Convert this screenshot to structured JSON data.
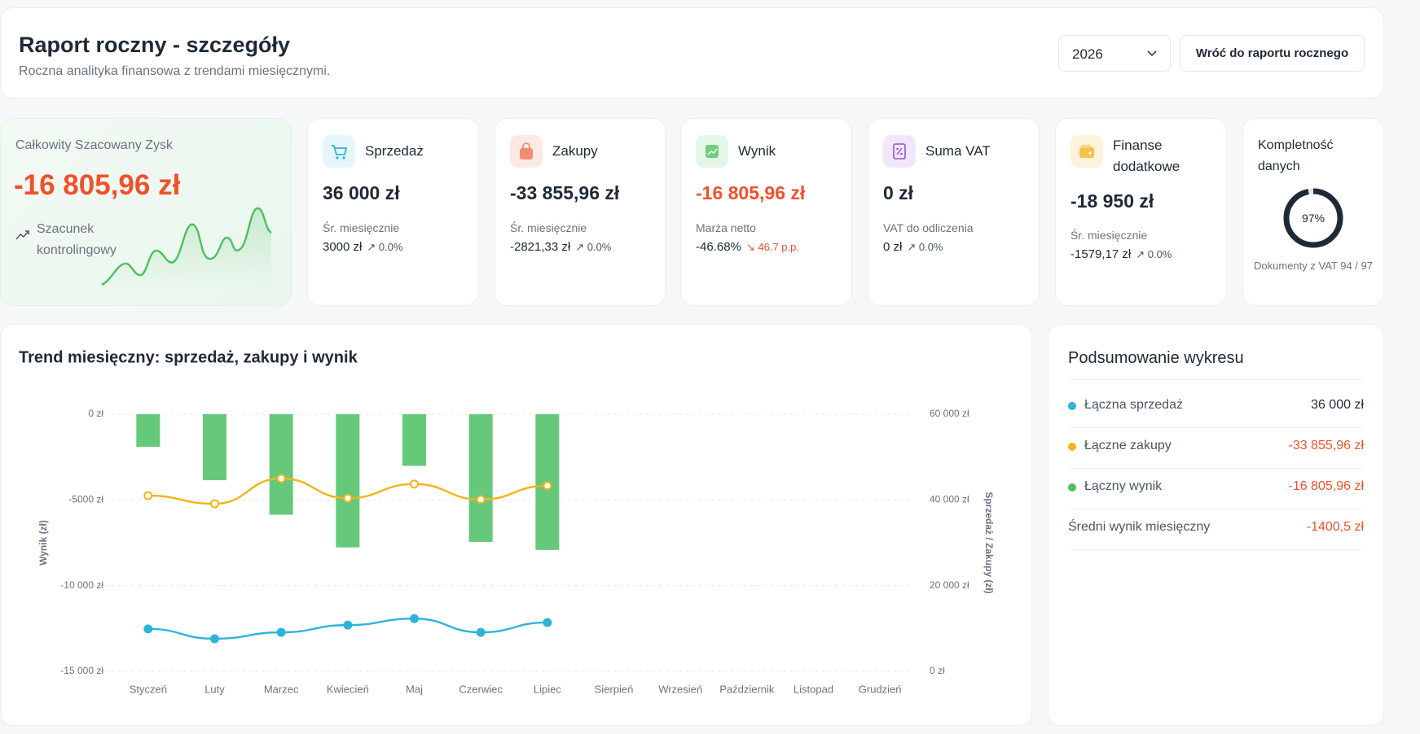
{
  "header": {
    "title": "Raport roczny - szczegóły",
    "subtitle": "Roczna analityka finansowa z trendami miesięcznymi.",
    "year": "2026",
    "back_button": "Wróć do raportu rocznego"
  },
  "hero": {
    "label": "Całkowity Szacowany Zysk",
    "value": "-16 805,96 zł",
    "note": "Szacunek kontrolingowy"
  },
  "kpis": [
    {
      "title": "Sprzedaż",
      "value": "36 000 zł",
      "sub_label": "Śr. miesięcznie",
      "sub_value": "3000 zł",
      "trend": "0.0%"
    },
    {
      "title": "Zakupy",
      "value": "-33 855,96 zł",
      "sub_label": "Śr. miesięcznie",
      "sub_value": "-2821,33 zł",
      "trend": "0.0%"
    },
    {
      "title": "Wynik",
      "value": "-16 805,96 zł",
      "sub_label": "Marża netto",
      "sub_value": "-46.68%",
      "trend": "46.7 p.p."
    },
    {
      "title": "Suma VAT",
      "value": "0 zł",
      "sub_label": "VAT do odliczenia",
      "sub_value": "0 zł",
      "trend": "0.0%"
    },
    {
      "title": "Finanse dodatkowe",
      "value": "-18 950 zł",
      "sub_label": "Śr. miesięcznie",
      "sub_value": "-1579,17 zł",
      "trend": "0.0%"
    },
    {
      "title": "Kompletność danych",
      "value": 97,
      "value_label": "97%",
      "note": "Dokumenty z VAT 94 / 97"
    }
  ],
  "chart_data": {
    "type": "bar",
    "title": "Trend miesięczny: sprzedaż, zakupy i wynik",
    "categories": [
      "Styczeń",
      "Luty",
      "Marzec",
      "Kwiecień",
      "Maj",
      "Czerwiec",
      "Lipiec",
      "Sierpień",
      "Wrzesień",
      "Październik",
      "Listopad",
      "Grudzień"
    ],
    "series": [
      {
        "type": "bar",
        "color": "#66c97a",
        "values": [
          -1900,
          -3850,
          -5860,
          -7770,
          -3010,
          -7450,
          -7920,
          null,
          null,
          null,
          null,
          null
        ]
      },
      {
        "type": "line",
        "axis": "y2",
        "color": "#f5b316",
        "values": [
          41000,
          39100,
          45000,
          40400,
          43700,
          40100,
          43300,
          null,
          null,
          null,
          null,
          null
        ]
      },
      {
        "type": "line",
        "axis": "y2",
        "color": "#2db4da",
        "values": [
          9900,
          7600,
          9100,
          10800,
          12300,
          9100,
          11400,
          null,
          null,
          null,
          null,
          null
        ]
      }
    ],
    "ylabel": "Wynik (zł)",
    "y2label": "Sprzedaż / Zakupy (zł)",
    "ylim": [
      -15000,
      0
    ],
    "yticks": [
      {
        "value": 0,
        "label": "0 zł"
      },
      {
        "value": -5000,
        "label": "-5000 zł"
      },
      {
        "value": -10000,
        "label": "-10 000 zł"
      },
      {
        "value": -15000,
        "label": "-15 000 zł"
      }
    ],
    "y2lim": [
      0,
      60000
    ],
    "y2ticks": [
      {
        "value": 60000,
        "label": "60 000 zł"
      },
      {
        "value": 40000,
        "label": "40 000 zł"
      },
      {
        "value": 20000,
        "label": "20 000 zł"
      },
      {
        "value": 0,
        "label": "0 zł"
      }
    ],
    "grid": true
  },
  "summary": {
    "title": "Podsumowanie wykresu",
    "rows": [
      {
        "label": "Łączna sprzedaż",
        "value": "36 000 zł",
        "color": "#2db4da"
      },
      {
        "label": "Łączne zakupy",
        "value": "-33 855,96 zł",
        "color": "#f5b316"
      },
      {
        "label": "Łączny wynik",
        "value": "-16 805,96 zł",
        "color": "#4cc060"
      },
      {
        "label": "Średni wynik miesięczny",
        "value": "-1400,5 zł"
      }
    ]
  }
}
